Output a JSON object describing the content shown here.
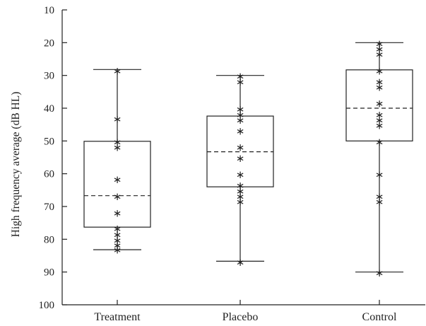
{
  "chart_data": {
    "type": "box",
    "ylabel": "High frequency average (dB HL)",
    "ylim": [
      10,
      100
    ],
    "y_inverted": true,
    "y_ticks": [
      10,
      20,
      30,
      40,
      50,
      60,
      70,
      80,
      90,
      100
    ],
    "y_tick_labels": [
      "10",
      "20",
      "30",
      "40",
      "50",
      "60",
      "70",
      "80",
      "90",
      "100"
    ],
    "categories": [
      "Treatment",
      "Placebo",
      "Control"
    ],
    "boxes": [
      {
        "name": "Treatment",
        "whisker_low": 28.2,
        "q1": 50.1,
        "median": 66.7,
        "q3": 76.3,
        "whisker_high": 83.2,
        "points": [
          28.3,
          43.0,
          50.0,
          51.7,
          61.5,
          66.7,
          71.7,
          76.5,
          78.3,
          80.0,
          81.5,
          83.0
        ]
      },
      {
        "name": "Placebo",
        "whisker_low": 30.0,
        "q1": 42.4,
        "median": 53.3,
        "q3": 64.0,
        "whisker_high": 86.7,
        "points": [
          30.0,
          31.7,
          40.0,
          41.7,
          43.3,
          46.7,
          51.7,
          55.0,
          60.0,
          63.3,
          65.0,
          66.7,
          68.3,
          86.7
        ]
      },
      {
        "name": "Control",
        "whisker_low": 20.0,
        "q1": 28.3,
        "median": 40.0,
        "q3": 50.0,
        "whisker_high": 90.0,
        "points": [
          20.0,
          21.7,
          23.3,
          28.3,
          31.7,
          33.3,
          38.3,
          41.7,
          43.3,
          45.0,
          50.0,
          60.0,
          66.7,
          68.3,
          90.0
        ]
      }
    ]
  }
}
